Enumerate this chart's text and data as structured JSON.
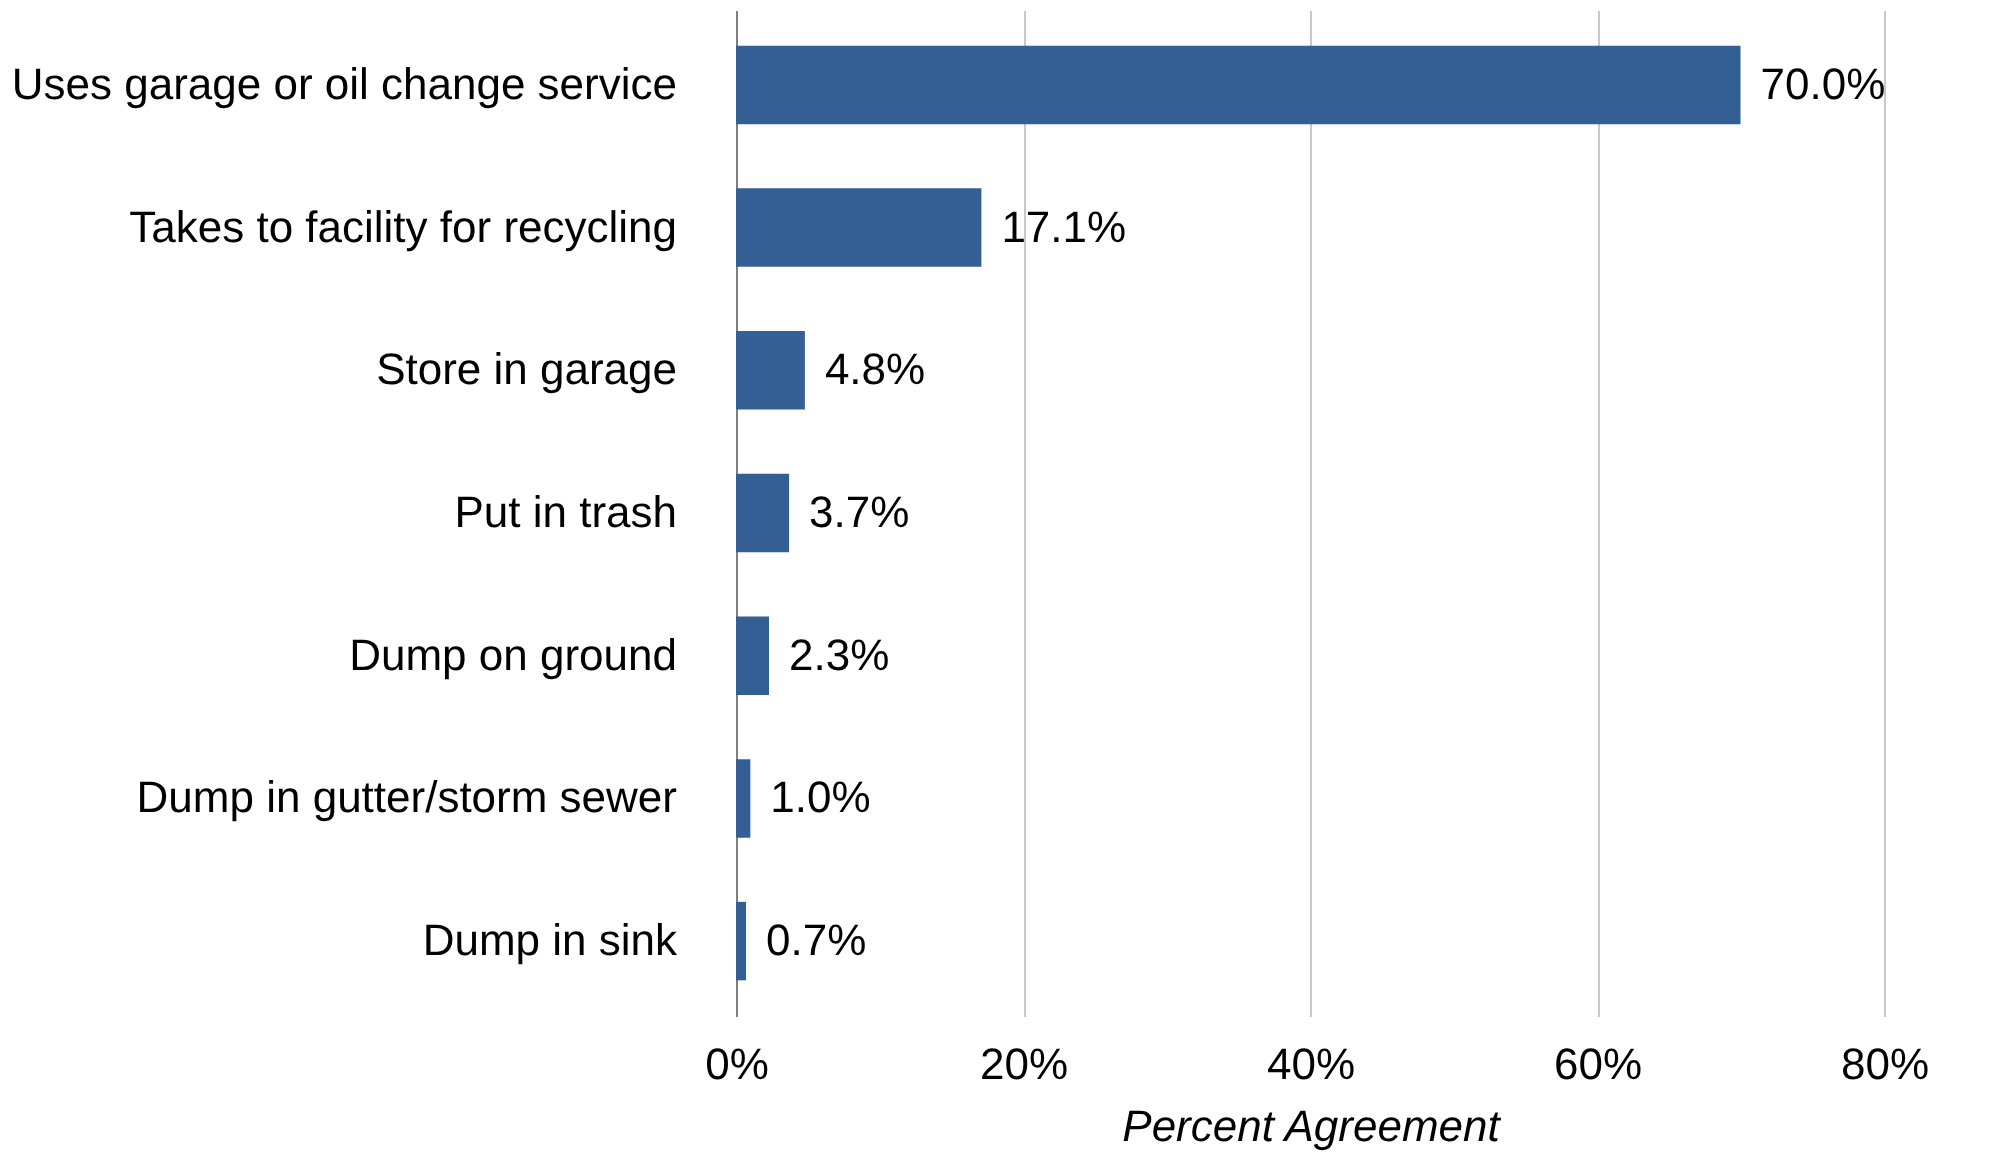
{
  "chart_data": {
    "type": "bar",
    "orientation": "horizontal",
    "xlabel": "Percent Agreement",
    "categories": [
      "Uses garage or oil change service",
      "Takes to facility for recycling",
      "Store in garage",
      "Put in trash",
      "Dump on ground",
      "Dump in gutter/storm sewer",
      "Dump in sink"
    ],
    "values": [
      70.0,
      17.1,
      4.8,
      3.7,
      2.3,
      1.0,
      0.7
    ],
    "value_labels": [
      "70.0%",
      "17.1%",
      "4.8%",
      "3.7%",
      "2.3%",
      "1.0%",
      "0.7%"
    ],
    "color": "#335f94",
    "xlim": [
      0,
      80
    ],
    "xticks": [
      {
        "value": 0,
        "label": "0%"
      },
      {
        "value": 20,
        "label": "20%"
      },
      {
        "value": 40,
        "label": "40%"
      },
      {
        "value": 60,
        "label": "60%"
      },
      {
        "value": 80,
        "label": "80%"
      }
    ],
    "grid": "x"
  }
}
